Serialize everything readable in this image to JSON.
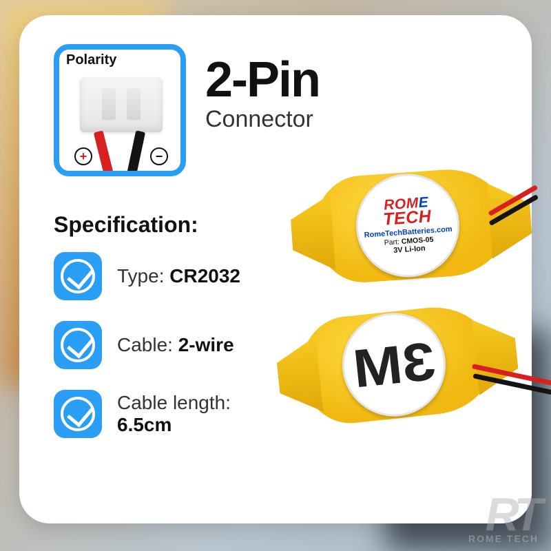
{
  "polarity": {
    "label": "Polarity",
    "plus": "+",
    "minus": "−"
  },
  "title": {
    "main": "2-Pin",
    "sub": "Connector"
  },
  "spec": {
    "heading": "Specification:",
    "items": [
      {
        "label": "Type:",
        "value": "CR2032"
      },
      {
        "label": "Cable:",
        "value": "2-wire"
      },
      {
        "label": "Cable length:",
        "value": "6.5cm"
      }
    ]
  },
  "battery_top": {
    "brand_rome": "ROM",
    "brand_e": "E",
    "brand_tech": "TECH",
    "url": "RomeTechBatteries.com",
    "part_label": "Part:",
    "part_value": "CMOS-05",
    "voltage": "3V Li-Ion"
  },
  "battery_bottom": {
    "m": "M",
    "three_mirrored": "3"
  },
  "corner": {
    "rt": "RT",
    "name": "ROME TECH"
  },
  "colors": {
    "accent": "#2a9df4",
    "red": "#d92020",
    "yellow": "#f0b810",
    "text": "#111111"
  }
}
